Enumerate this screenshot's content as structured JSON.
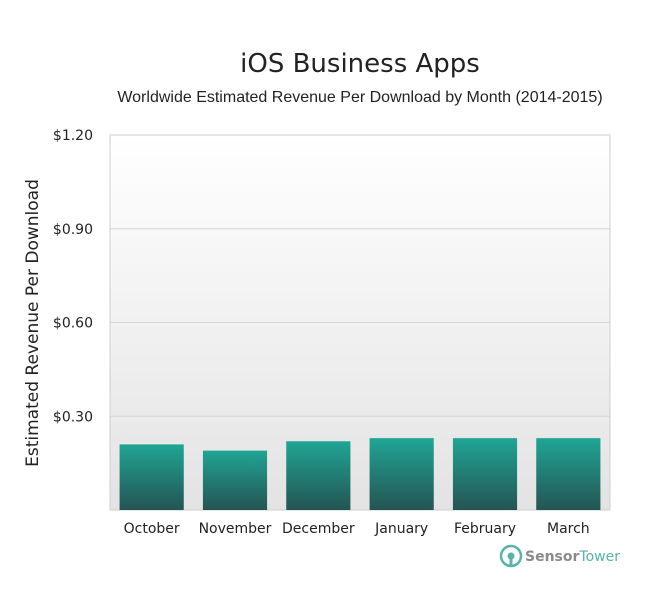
{
  "chart_data": {
    "type": "bar",
    "title": "iOS Business Apps",
    "subtitle": "Worldwide Estimated Revenue Per Download by Month (2014-2015)",
    "ylabel": "Estimated Revenue Per Download",
    "xlabel": "",
    "categories": [
      "October",
      "November",
      "December",
      "January",
      "February",
      "March"
    ],
    "values": [
      0.21,
      0.19,
      0.22,
      0.23,
      0.23,
      0.23
    ],
    "ylim": [
      0,
      1.2
    ],
    "yticks": [
      0.3,
      0.6,
      0.9,
      1.2
    ],
    "ytick_labels": [
      "$0.30",
      "$0.60",
      "$0.90",
      "$1.20"
    ],
    "grid": true,
    "colors": {
      "bar_top": "#20a595",
      "bar_bottom": "#245452",
      "plot_bg_top": "#ffffff",
      "plot_bg_bottom": "#e3e3e3",
      "grid": "#d4d4d4"
    }
  },
  "brand": {
    "name_part1": "Sensor",
    "name_part2": "Tower",
    "icon": "sensortower-logo-icon",
    "color": "#58b3a8"
  }
}
